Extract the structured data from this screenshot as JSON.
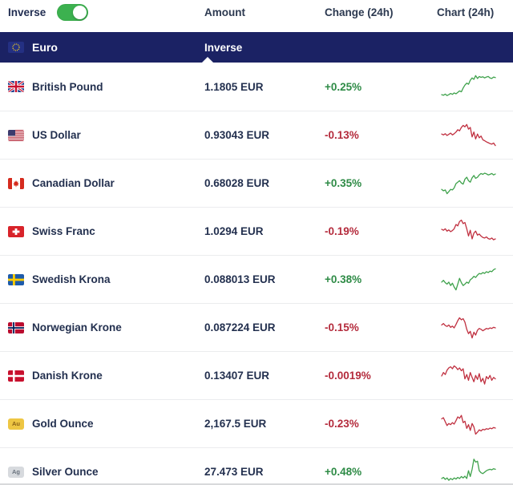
{
  "header": {
    "inverse_label": "Inverse",
    "toggle_state": "on",
    "col_amount": "Amount",
    "col_change": "Change (24h)",
    "col_chart": "Chart (24h)"
  },
  "base_row": {
    "currency": "Euro",
    "flag": "eu",
    "amount_label": "Inverse"
  },
  "colors": {
    "navy": "#1b2264",
    "toggle_green": "#3cb14f",
    "text_green": "#2e8b46",
    "text_red": "#b42b3c",
    "spark_green": "#3fa24c",
    "spark_red": "#c03040"
  },
  "rows": [
    {
      "name": "British Pound",
      "flag": "gb",
      "amount": "1.1805 EUR",
      "change": "+0.25%",
      "trend": "up",
      "spark": [
        0.22,
        0.2,
        0.24,
        0.19,
        0.22,
        0.26,
        0.23,
        0.28,
        0.25,
        0.3,
        0.35,
        0.32,
        0.45,
        0.55,
        0.62,
        0.58,
        0.72,
        0.8,
        0.75,
        0.88,
        0.78,
        0.85,
        0.82,
        0.84,
        0.8,
        0.83,
        0.85,
        0.8,
        0.78,
        0.83,
        0.81
      ]
    },
    {
      "name": "US Dollar",
      "flag": "us",
      "amount": "0.93043 EUR",
      "change": "-0.13%",
      "trend": "down",
      "spark": [
        0.55,
        0.52,
        0.56,
        0.5,
        0.54,
        0.58,
        0.52,
        0.56,
        0.62,
        0.7,
        0.66,
        0.78,
        0.85,
        0.8,
        0.88,
        0.72,
        0.78,
        0.45,
        0.62,
        0.38,
        0.55,
        0.42,
        0.48,
        0.35,
        0.32,
        0.28,
        0.25,
        0.22,
        0.2,
        0.24,
        0.15
      ]
    },
    {
      "name": "Canadian Dollar",
      "flag": "ca",
      "amount": "0.68028 EUR",
      "change": "+0.35%",
      "trend": "up",
      "spark": [
        0.3,
        0.25,
        0.28,
        0.15,
        0.22,
        0.3,
        0.28,
        0.35,
        0.5,
        0.55,
        0.6,
        0.52,
        0.48,
        0.65,
        0.72,
        0.6,
        0.55,
        0.7,
        0.78,
        0.68,
        0.72,
        0.8,
        0.85,
        0.82,
        0.86,
        0.84,
        0.8,
        0.82,
        0.85,
        0.8,
        0.83
      ]
    },
    {
      "name": "Swiss Franc",
      "flag": "ch",
      "amount": "1.0294 EUR",
      "change": "-0.19%",
      "trend": "down",
      "spark": [
        0.58,
        0.55,
        0.6,
        0.52,
        0.56,
        0.5,
        0.54,
        0.6,
        0.75,
        0.7,
        0.85,
        0.9,
        0.78,
        0.82,
        0.6,
        0.35,
        0.55,
        0.25,
        0.45,
        0.52,
        0.38,
        0.42,
        0.35,
        0.3,
        0.28,
        0.32,
        0.26,
        0.24,
        0.28,
        0.22,
        0.25
      ]
    },
    {
      "name": "Swedish Krona",
      "flag": "se",
      "amount": "0.088013 EUR",
      "change": "+0.38%",
      "trend": "up",
      "spark": [
        0.42,
        0.48,
        0.4,
        0.35,
        0.42,
        0.3,
        0.38,
        0.25,
        0.15,
        0.35,
        0.55,
        0.4,
        0.3,
        0.35,
        0.42,
        0.38,
        0.5,
        0.55,
        0.62,
        0.58,
        0.66,
        0.72,
        0.7,
        0.75,
        0.72,
        0.78,
        0.75,
        0.8,
        0.78,
        0.85,
        0.88
      ]
    },
    {
      "name": "Norwegian Krone",
      "flag": "no",
      "amount": "0.087224 EUR",
      "change": "-0.15%",
      "trend": "down",
      "spark": [
        0.6,
        0.65,
        0.58,
        0.55,
        0.6,
        0.52,
        0.56,
        0.5,
        0.62,
        0.75,
        0.85,
        0.78,
        0.82,
        0.7,
        0.45,
        0.3,
        0.38,
        0.15,
        0.35,
        0.25,
        0.42,
        0.48,
        0.45,
        0.4,
        0.44,
        0.48,
        0.46,
        0.5,
        0.48,
        0.52,
        0.5
      ]
    },
    {
      "name": "Danish Krone",
      "flag": "dk",
      "amount": "0.13407 EUR",
      "change": "-0.0019%",
      "trend": "down",
      "spark": [
        0.5,
        0.62,
        0.55,
        0.7,
        0.78,
        0.82,
        0.75,
        0.85,
        0.8,
        0.72,
        0.78,
        0.68,
        0.75,
        0.4,
        0.55,
        0.35,
        0.62,
        0.45,
        0.3,
        0.52,
        0.38,
        0.58,
        0.3,
        0.42,
        0.22,
        0.48,
        0.4,
        0.52,
        0.35,
        0.45,
        0.4
      ]
    },
    {
      "name": "Gold Ounce",
      "flag": "au-metal",
      "amount": "2,167.5 EUR",
      "change": "-0.23%",
      "trend": "down",
      "spark": [
        0.68,
        0.72,
        0.58,
        0.45,
        0.52,
        0.48,
        0.55,
        0.5,
        0.62,
        0.75,
        0.7,
        0.8,
        0.55,
        0.6,
        0.35,
        0.48,
        0.28,
        0.52,
        0.4,
        0.15,
        0.22,
        0.3,
        0.26,
        0.32,
        0.3,
        0.34,
        0.32,
        0.36,
        0.34,
        0.38,
        0.36
      ]
    },
    {
      "name": "Silver Ounce",
      "flag": "ag-metal",
      "amount": "27.473 EUR",
      "change": "+0.48%",
      "trend": "up",
      "spark": [
        0.28,
        0.32,
        0.25,
        0.3,
        0.22,
        0.28,
        0.24,
        0.3,
        0.26,
        0.32,
        0.28,
        0.35,
        0.3,
        0.36,
        0.28,
        0.55,
        0.35,
        0.6,
        0.95,
        0.85,
        0.88,
        0.55,
        0.48,
        0.45,
        0.5,
        0.55,
        0.58,
        0.6,
        0.58,
        0.62,
        0.6
      ]
    }
  ]
}
